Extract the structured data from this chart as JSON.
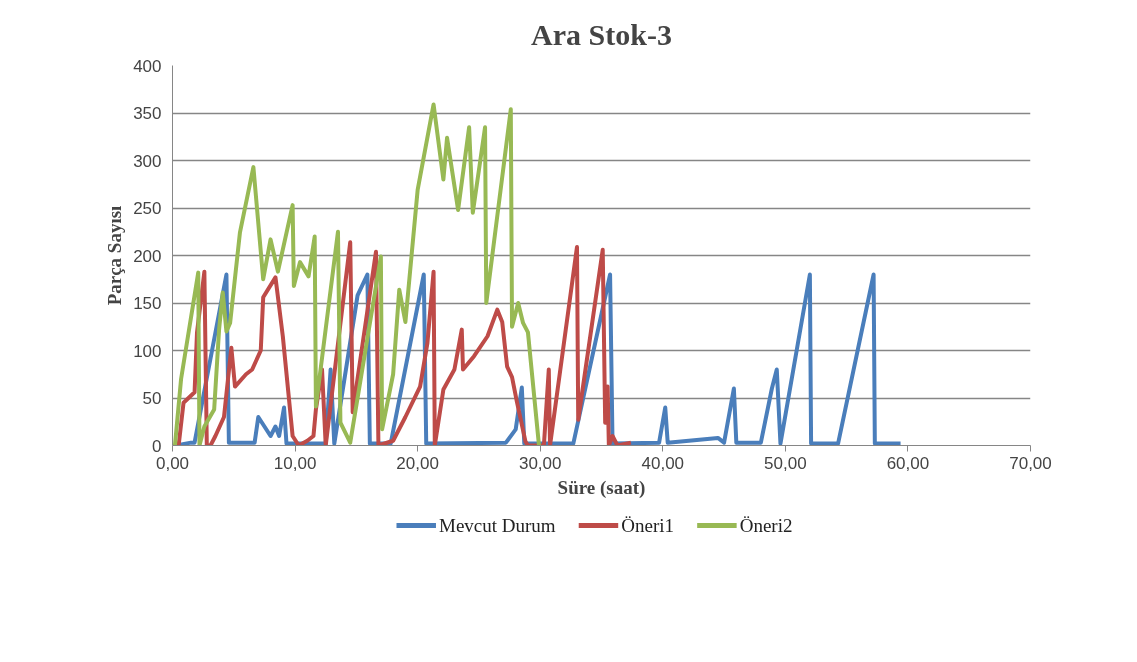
{
  "chart_data": {
    "type": "line",
    "title": "Ara Stok-3",
    "xlabel": "Süre (saat)",
    "ylabel": "Parça Sayısı",
    "xlim": [
      0,
      70
    ],
    "ylim": [
      0,
      400
    ],
    "xticks": [
      {
        "value": 0,
        "label": "0,00"
      },
      {
        "value": 10,
        "label": "10,00"
      },
      {
        "value": 20,
        "label": "20,00"
      },
      {
        "value": 30,
        "label": "30,00"
      },
      {
        "value": 40,
        "label": "40,00"
      },
      {
        "value": 50,
        "label": "50,00"
      },
      {
        "value": 60,
        "label": "60,00"
      },
      {
        "value": 70,
        "label": "70,00"
      }
    ],
    "yticks": [
      0,
      50,
      100,
      150,
      200,
      250,
      300,
      350,
      400
    ],
    "grid": "y",
    "legend": "bottom",
    "marker": "none",
    "line_style": "solid",
    "series": [
      {
        "name": "Mevcut Durum",
        "color": "#4a7ebb",
        "x": [
          0.3,
          1.5,
          1.8,
          4.4,
          4.6,
          6.7,
          7.0,
          8.0,
          8.4,
          8.7,
          9.1,
          9.3,
          12.5,
          12.9,
          13.2,
          15.1,
          15.9,
          16.1,
          17.8,
          20.5,
          20.7,
          27.2,
          28.0,
          28.5,
          28.7,
          32.7,
          35.7,
          35.9,
          39.7,
          40.2,
          40.4,
          44.5,
          45.0,
          45.8,
          46.0,
          48.0,
          48.9,
          49.3,
          49.6,
          52.0,
          52.1,
          54.3,
          57.2,
          57.3,
          59.4
        ],
        "values": [
          0,
          3,
          3,
          180,
          3,
          3,
          30,
          10,
          20,
          10,
          40,
          2,
          2,
          80,
          2,
          158,
          180,
          2,
          2,
          180,
          2,
          3,
          17,
          61,
          2,
          2,
          180,
          2,
          3,
          40,
          3,
          8,
          3,
          60,
          3,
          3,
          60,
          80,
          2,
          180,
          2,
          2,
          180,
          2,
          2
        ]
      },
      {
        "name": "Öneri1",
        "color": "#be4b48",
        "x": [
          0.5,
          0.9,
          1.8,
          2.0,
          2.6,
          2.8,
          3.1,
          3.5,
          4.2,
          4.8,
          5.1,
          6.0,
          6.5,
          7.2,
          7.4,
          8.4,
          9.0,
          9.8,
          10.3,
          11.0,
          11.5,
          11.7,
          12.2,
          12.5,
          14.5,
          14.7,
          16.6,
          16.8,
          18.0,
          19.0,
          20.2,
          20.8,
          21.3,
          21.4,
          22.1,
          23.0,
          23.6,
          23.7,
          24.6,
          25.7,
          26.5,
          26.9,
          27.3,
          27.7,
          28.1,
          28.8,
          29.0,
          30.3,
          30.7,
          30.8,
          33.0,
          33.1,
          35.1,
          35.3,
          35.5,
          35.6,
          35.9,
          36.3,
          37.4
        ],
        "values": [
          0,
          45,
          56,
          119,
          183,
          0,
          0,
          10,
          30,
          103,
          62,
          75,
          80,
          100,
          156,
          177,
          115,
          10,
          0,
          5,
          10,
          38,
          80,
          0,
          214,
          35,
          204,
          0,
          5,
          30,
          62,
          108,
          183,
          0,
          59,
          80,
          122,
          80,
          94,
          115,
          143,
          130,
          83,
          72,
          46,
          4,
          0,
          0,
          80,
          0,
          209,
          27,
          206,
          24,
          62,
          0,
          10,
          0,
          3
        ]
      },
      {
        "name": "Öneri2",
        "color": "#98b954",
        "x": [
          0.2,
          0.7,
          2.1,
          2.2,
          2.6,
          3.4,
          3.8,
          4.1,
          4.4,
          4.7,
          5.5,
          6.6,
          7.4,
          8.0,
          8.6,
          9.8,
          9.9,
          10.4,
          11.1,
          11.6,
          11.7,
          13.5,
          13.7,
          14.5,
          17.0,
          17.1,
          18.0,
          18.5,
          19.0,
          20.0,
          21.3,
          22.1,
          22.4,
          23.3,
          24.2,
          24.5,
          25.5,
          25.6,
          27.6,
          27.7,
          28.2,
          28.6,
          29.0,
          29.9
        ],
        "values": [
          0,
          70,
          182,
          0,
          20,
          38,
          122,
          161,
          120,
          129,
          224,
          293,
          175,
          217,
          183,
          253,
          168,
          193,
          178,
          220,
          41,
          225,
          24,
          3,
          199,
          17,
          75,
          164,
          130,
          269,
          359,
          280,
          324,
          248,
          335,
          245,
          335,
          150,
          354,
          125,
          150,
          129,
          119,
          0
        ]
      }
    ]
  }
}
